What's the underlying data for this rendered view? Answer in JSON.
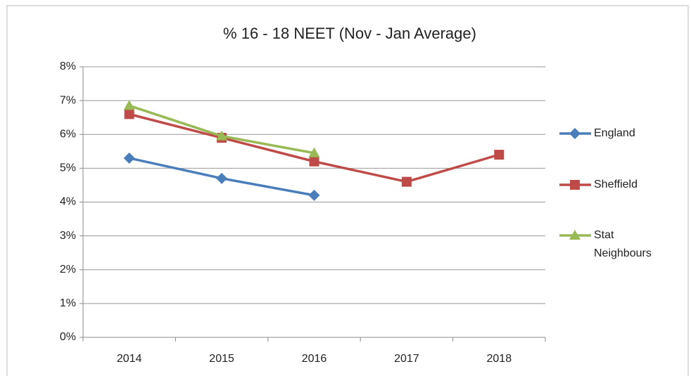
{
  "chart_data": {
    "type": "line",
    "title": "% 16 - 18 NEET (Nov - Jan Average)",
    "categories": [
      "2014",
      "2015",
      "2016",
      "2017",
      "2018"
    ],
    "series": [
      {
        "name": "England",
        "color": "#4a7ebb",
        "marker": "diamond",
        "values": [
          5.3,
          4.7,
          4.2,
          null,
          null
        ]
      },
      {
        "name": "Sheffield",
        "color": "#be4b48",
        "marker": "square",
        "values": [
          6.6,
          5.9,
          5.2,
          4.6,
          5.4
        ]
      },
      {
        "name": "Stat Neighbours",
        "color": "#98b954",
        "marker": "triangle",
        "values": [
          6.85,
          5.95,
          5.45,
          null,
          null
        ]
      }
    ],
    "ylim": [
      0,
      8
    ],
    "yticks": [
      {
        "value": 0,
        "label": "0%"
      },
      {
        "value": 1,
        "label": "1%"
      },
      {
        "value": 2,
        "label": "2%"
      },
      {
        "value": 3,
        "label": "3%"
      },
      {
        "value": 4,
        "label": "4%"
      },
      {
        "value": 5,
        "label": "5%"
      },
      {
        "value": 6,
        "label": "6%"
      },
      {
        "value": 7,
        "label": "7%"
      },
      {
        "value": 8,
        "label": "8%"
      }
    ],
    "grid": true,
    "legend": "right"
  }
}
